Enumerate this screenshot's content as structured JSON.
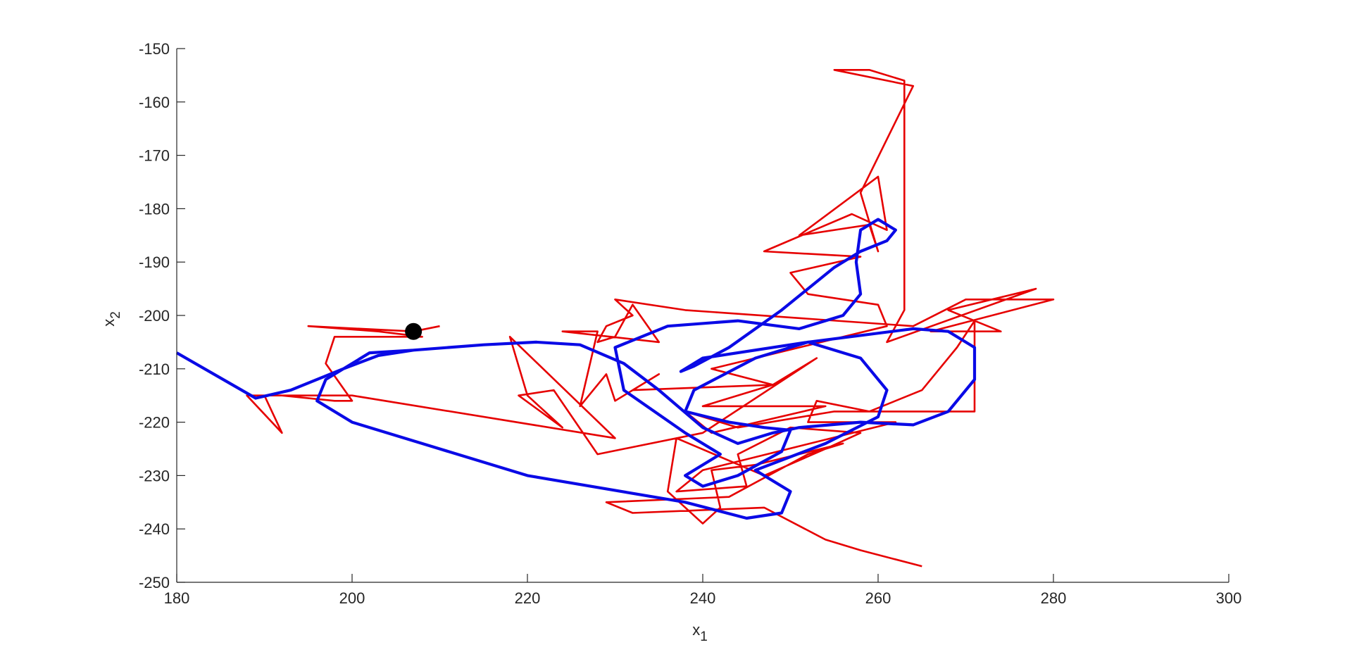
{
  "chart_data": {
    "type": "line",
    "xlabel": "x",
    "xlabel_sub": "1",
    "ylabel": "x",
    "ylabel_sub": "2",
    "xlim": [
      180,
      300
    ],
    "xticks": [
      180,
      200,
      220,
      240,
      260,
      280,
      300
    ],
    "ylim": [
      -250,
      -150
    ],
    "yticks": [
      -250,
      -240,
      -230,
      -220,
      -210,
      -200,
      -190,
      -180,
      -170,
      -160,
      -150
    ],
    "grid": false,
    "series": [
      {
        "color": "#e60000",
        "style": "line",
        "width": 2.6,
        "x": [
          210,
          207,
          195,
          203,
          208,
          198,
          197,
          200,
          198,
          192,
          188,
          192,
          190,
          200,
          230,
          218,
          220,
          224,
          219,
          223,
          228,
          240,
          253,
          248,
          232,
          235,
          230,
          229,
          226,
          228,
          224,
          235,
          232,
          230,
          228,
          229,
          232,
          230,
          238,
          264,
          270,
          280,
          266,
          274,
          268,
          278,
          261,
          263,
          263,
          259,
          255,
          264,
          258,
          260,
          259,
          251,
          260,
          261,
          257,
          247,
          258,
          250,
          252,
          260,
          261,
          241,
          248,
          240,
          247,
          254,
          241,
          238,
          244,
          255,
          264,
          271,
          271,
          269,
          265,
          259,
          253,
          252,
          262,
          240,
          237,
          245,
          244,
          250,
          258,
          254,
          247,
          237,
          236,
          240,
          242,
          241,
          246,
          256,
          252,
          243,
          229,
          232,
          247,
          254,
          258,
          265
        ],
        "values": [
          -202,
          -203,
          -202,
          -203,
          -204,
          -204,
          -209,
          -216,
          -216,
          -215,
          -215,
          -222,
          -215,
          -215,
          -223,
          -204,
          -215,
          -221,
          -215,
          -214,
          -226,
          -222,
          -208,
          -213,
          -214,
          -211,
          -216,
          -211,
          -217,
          -203,
          -203,
          -205,
          -198,
          -204,
          -205,
          -202,
          -200,
          -197,
          -199,
          -202,
          -197,
          -197,
          -203,
          -203,
          -199,
          -195,
          -205,
          -199,
          -156,
          -154,
          -154,
          -157,
          -177,
          -188,
          -183,
          -185,
          -174,
          -184,
          -181,
          -188,
          -189,
          -192,
          -196,
          -198,
          -202,
          -210,
          -213,
          -217,
          -217,
          -217,
          -222,
          -218,
          -221,
          -218,
          -218,
          -218,
          -201,
          -206,
          -214,
          -218,
          -216,
          -220,
          -220,
          -229,
          -233,
          -232,
          -226,
          -221,
          -222,
          -225,
          -230,
          -223,
          -233,
          -239,
          -236,
          -229,
          -228,
          -224,
          -226,
          -234,
          -235,
          -237,
          -236,
          -242,
          -244,
          -247
        ]
      },
      {
        "color": "#0a0ae6",
        "style": "line",
        "width": 4.2,
        "x": [
          180,
          189,
          193,
          199,
          203,
          207,
          215,
          221,
          226,
          231,
          235,
          240,
          244,
          248,
          251,
          258,
          264,
          268,
          271,
          271,
          268,
          264,
          252,
          240,
          237.5,
          239,
          243,
          249,
          255,
          258,
          261,
          262,
          260,
          258,
          257.5,
          258,
          256,
          251,
          244,
          236,
          230,
          231,
          238,
          242,
          238,
          240,
          244,
          249,
          250,
          247,
          243,
          238,
          239,
          246,
          252,
          258,
          261,
          260,
          254,
          246,
          250,
          249,
          245,
          238,
          220,
          200,
          196,
          197,
          202,
          207
        ],
        "values": [
          -207,
          -215.5,
          -214,
          -210,
          -207.5,
          -206.5,
          -205.5,
          -205,
          -205.5,
          -209,
          -214,
          -221,
          -224,
          -222,
          -221,
          -220,
          -220.5,
          -218,
          -212,
          -206,
          -203,
          -202.5,
          -205,
          -208,
          -210.5,
          -209.5,
          -206,
          -199,
          -191,
          -188,
          -186,
          -184,
          -182,
          -184,
          -190,
          -196,
          -200,
          -202.5,
          -201,
          -202,
          -206,
          -214,
          -222,
          -226,
          -230,
          -232,
          -230,
          -225.5,
          -221.5,
          -221,
          -220,
          -218,
          -214,
          -208,
          -205,
          -208,
          -214,
          -219,
          -224,
          -229,
          -233,
          -237,
          -238,
          -235,
          -230,
          -220,
          -216,
          -212,
          -207,
          -206.5
        ]
      },
      {
        "color": "#000000",
        "style": "marker",
        "size": 12,
        "x": [
          207
        ],
        "values": [
          -203
        ]
      }
    ]
  }
}
